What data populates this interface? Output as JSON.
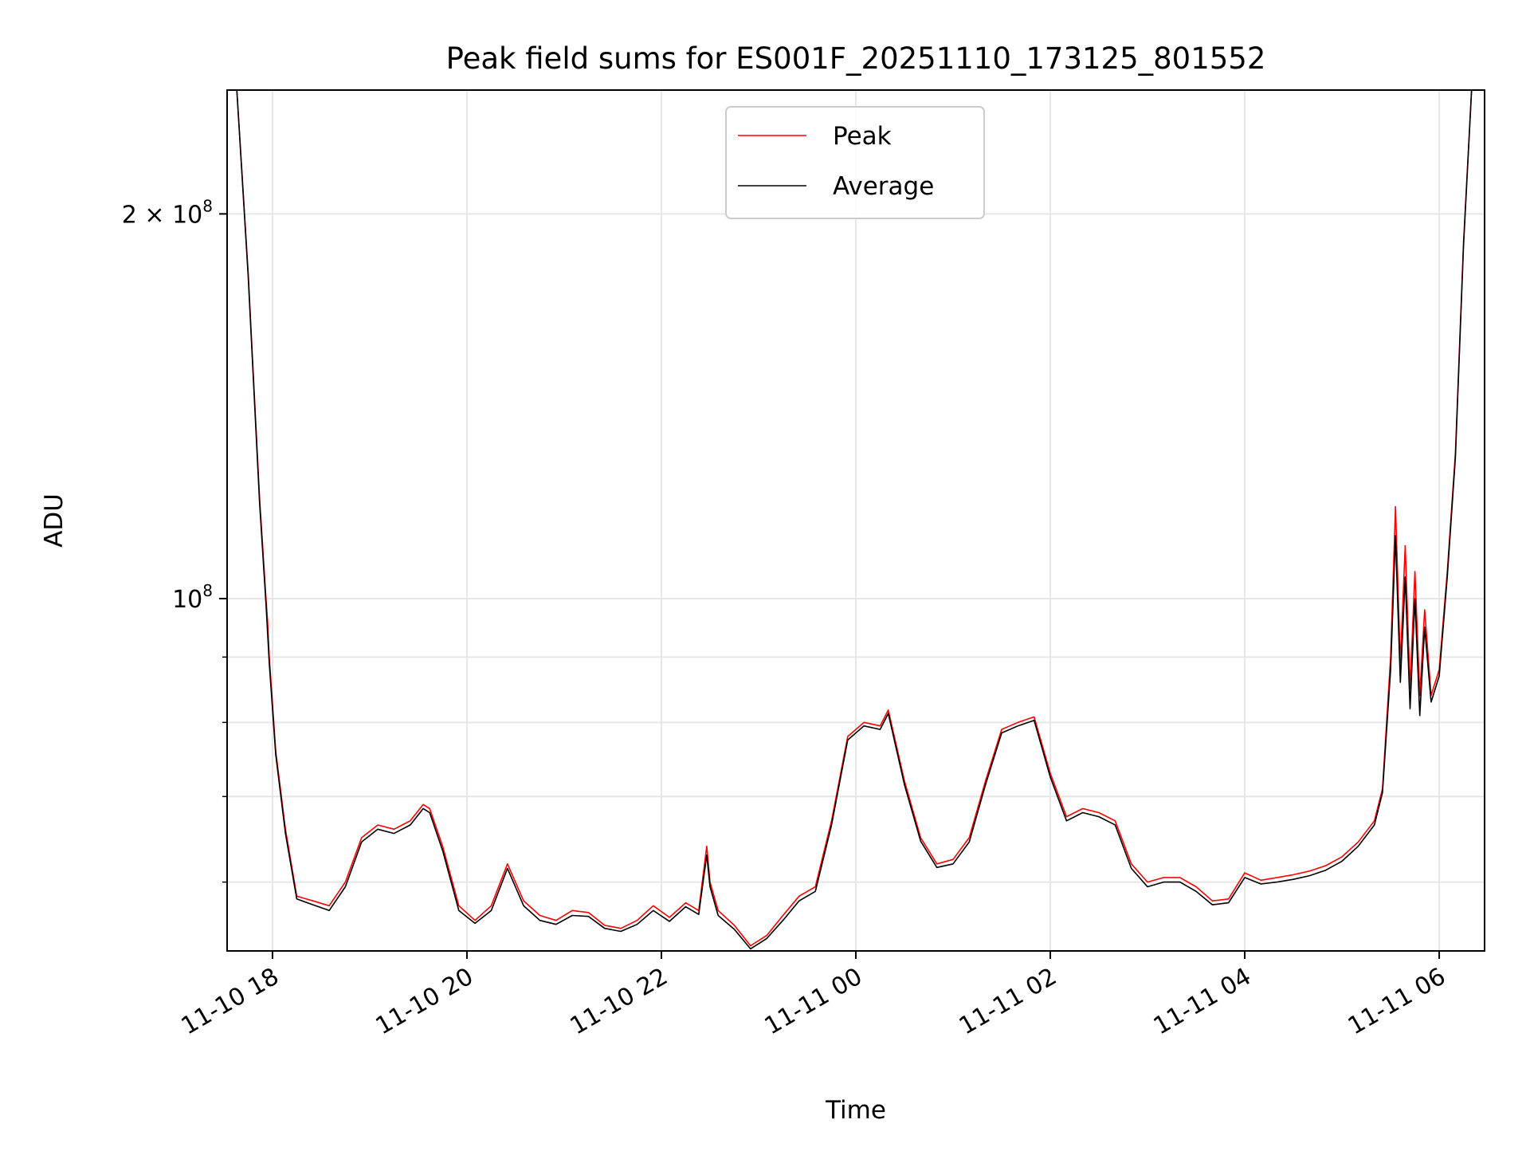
{
  "chart_data": {
    "type": "line",
    "title": "Peak field sums for ES001F_20251110_173125_801552",
    "xlabel": "Time",
    "ylabel": "ADU",
    "x_axis": {
      "type": "datetime",
      "range": [
        "2025-11-10 17:32",
        "2025-11-11 06:28"
      ],
      "ticks": [
        {
          "value": "2025-11-10 18:00",
          "label": "11-10 18"
        },
        {
          "value": "2025-11-10 20:00",
          "label": "11-10 20"
        },
        {
          "value": "2025-11-10 22:00",
          "label": "11-10 22"
        },
        {
          "value": "2025-11-11 00:00",
          "label": "11-11 00"
        },
        {
          "value": "2025-11-11 02:00",
          "label": "11-11 02"
        },
        {
          "value": "2025-11-11 04:00",
          "label": "11-11 04"
        },
        {
          "value": "2025-11-11 06:00",
          "label": "11-11 06"
        }
      ]
    },
    "y_axis": {
      "scale": "log",
      "range": [
        53000000,
        250000000
      ],
      "major_ticks": [
        {
          "value": 100000000,
          "label_base": "10",
          "label_exp": "8",
          "label_mult": ""
        },
        {
          "value": 200000000,
          "label_base": "10",
          "label_exp": "8",
          "label_mult": "2 × "
        }
      ],
      "minor_ticks": [
        60000000,
        70000000,
        80000000,
        90000000
      ]
    },
    "grid": true,
    "legend": {
      "position": "top-center"
    },
    "series": [
      {
        "name": "Peak",
        "color": "#ff0000",
        "x": [
          "2025-11-10 17:38",
          "2025-11-10 17:45",
          "2025-11-10 17:52",
          "2025-11-10 17:56",
          "2025-11-10 17:57",
          "2025-11-10 17:58",
          "2025-11-10 18:02",
          "2025-11-10 18:08",
          "2025-11-10 18:15",
          "2025-11-10 18:25",
          "2025-11-10 18:35",
          "2025-11-10 18:45",
          "2025-11-10 18:55",
          "2025-11-10 19:05",
          "2025-11-10 19:15",
          "2025-11-10 19:25",
          "2025-11-10 19:33",
          "2025-11-10 19:37",
          "2025-11-10 19:45",
          "2025-11-10 19:55",
          "2025-11-10 20:05",
          "2025-11-10 20:15",
          "2025-11-10 20:25",
          "2025-11-10 20:35",
          "2025-11-10 20:45",
          "2025-11-10 20:55",
          "2025-11-10 21:05",
          "2025-11-10 21:15",
          "2025-11-10 21:25",
          "2025-11-10 21:35",
          "2025-11-10 21:45",
          "2025-11-10 21:55",
          "2025-11-10 22:05",
          "2025-11-10 22:15",
          "2025-11-10 22:23",
          "2025-11-10 22:28",
          "2025-11-10 22:30",
          "2025-11-10 22:35",
          "2025-11-10 22:45",
          "2025-11-10 22:55",
          "2025-11-10 23:05",
          "2025-11-10 23:15",
          "2025-11-10 23:25",
          "2025-11-10 23:35",
          "2025-11-10 23:45",
          "2025-11-10 23:55",
          "2025-11-11 00:05",
          "2025-11-11 00:15",
          "2025-11-11 00:20",
          "2025-11-11 00:30",
          "2025-11-11 00:40",
          "2025-11-11 00:50",
          "2025-11-11 01:00",
          "2025-11-11 01:10",
          "2025-11-11 01:20",
          "2025-11-11 01:30",
          "2025-11-11 01:40",
          "2025-11-11 01:50",
          "2025-11-11 02:00",
          "2025-11-11 02:10",
          "2025-11-11 02:20",
          "2025-11-11 02:30",
          "2025-11-11 02:40",
          "2025-11-11 02:50",
          "2025-11-11 03:00",
          "2025-11-11 03:10",
          "2025-11-11 03:20",
          "2025-11-11 03:30",
          "2025-11-11 03:40",
          "2025-11-11 03:50",
          "2025-11-11 04:00",
          "2025-11-11 04:10",
          "2025-11-11 04:20",
          "2025-11-11 04:30",
          "2025-11-11 04:40",
          "2025-11-11 04:50",
          "2025-11-11 05:00",
          "2025-11-11 05:10",
          "2025-11-11 05:20",
          "2025-11-11 05:25",
          "2025-11-11 05:30",
          "2025-11-11 05:33",
          "2025-11-11 05:36",
          "2025-11-11 05:39",
          "2025-11-11 05:42",
          "2025-11-11 05:45",
          "2025-11-11 05:48",
          "2025-11-11 05:51",
          "2025-11-11 05:55",
          "2025-11-11 06:00",
          "2025-11-11 06:05",
          "2025-11-11 06:10",
          "2025-11-11 06:15",
          "2025-11-11 06:20"
        ],
        "y": [
          250000000,
          180000000,
          120000000,
          100000000,
          96000000,
          90000000,
          76000000,
          66000000,
          58500000,
          58000000,
          57500000,
          60000000,
          65000000,
          66500000,
          66000000,
          67000000,
          69000000,
          68500000,
          64000000,
          57500000,
          56000000,
          57500000,
          62000000,
          58000000,
          56500000,
          56000000,
          57000000,
          56800000,
          55500000,
          55200000,
          56000000,
          57500000,
          56300000,
          57800000,
          57000000,
          64000000,
          60000000,
          57000000,
          55500000,
          53500000,
          54500000,
          56500000,
          58500000,
          59500000,
          67000000,
          78000000,
          80000000,
          79500000,
          81800000,
          72000000,
          65000000,
          62000000,
          62500000,
          65000000,
          72000000,
          79000000,
          80000000,
          80800000,
          73000000,
          67500000,
          68500000,
          68000000,
          67000000,
          62000000,
          60000000,
          60500000,
          60500000,
          59500000,
          58000000,
          58200000,
          61000000,
          60200000,
          60500000,
          60800000,
          61200000,
          61800000,
          62800000,
          64500000,
          67000000,
          71000000,
          90000000,
          118000000,
          89000000,
          110000000,
          85000000,
          105000000,
          84000000,
          98000000,
          84000000,
          88000000,
          105000000,
          130000000,
          190000000,
          250000000
        ]
      },
      {
        "name": "Average",
        "color": "#000000",
        "x": [
          "2025-11-10 17:38",
          "2025-11-10 17:45",
          "2025-11-10 17:52",
          "2025-11-10 17:56",
          "2025-11-10 17:57",
          "2025-11-10 17:58",
          "2025-11-10 18:02",
          "2025-11-10 18:08",
          "2025-11-10 18:15",
          "2025-11-10 18:25",
          "2025-11-10 18:35",
          "2025-11-10 18:45",
          "2025-11-10 18:55",
          "2025-11-10 19:05",
          "2025-11-10 19:15",
          "2025-11-10 19:25",
          "2025-11-10 19:33",
          "2025-11-10 19:37",
          "2025-11-10 19:45",
          "2025-11-10 19:55",
          "2025-11-10 20:05",
          "2025-11-10 20:15",
          "2025-11-10 20:25",
          "2025-11-10 20:35",
          "2025-11-10 20:45",
          "2025-11-10 20:55",
          "2025-11-10 21:05",
          "2025-11-10 21:15",
          "2025-11-10 21:25",
          "2025-11-10 21:35",
          "2025-11-10 21:45",
          "2025-11-10 21:55",
          "2025-11-10 22:05",
          "2025-11-10 22:15",
          "2025-11-10 22:23",
          "2025-11-10 22:28",
          "2025-11-10 22:30",
          "2025-11-10 22:35",
          "2025-11-10 22:45",
          "2025-11-10 22:55",
          "2025-11-10 23:05",
          "2025-11-10 23:15",
          "2025-11-10 23:25",
          "2025-11-10 23:35",
          "2025-11-10 23:45",
          "2025-11-10 23:55",
          "2025-11-11 00:05",
          "2025-11-11 00:15",
          "2025-11-11 00:20",
          "2025-11-11 00:30",
          "2025-11-11 00:40",
          "2025-11-11 00:50",
          "2025-11-11 01:00",
          "2025-11-11 01:10",
          "2025-11-11 01:20",
          "2025-11-11 01:30",
          "2025-11-11 01:40",
          "2025-11-11 01:50",
          "2025-11-11 02:00",
          "2025-11-11 02:10",
          "2025-11-11 02:20",
          "2025-11-11 02:30",
          "2025-11-11 02:40",
          "2025-11-11 02:50",
          "2025-11-11 03:00",
          "2025-11-11 03:10",
          "2025-11-11 03:20",
          "2025-11-11 03:30",
          "2025-11-11 03:40",
          "2025-11-11 03:50",
          "2025-11-11 04:00",
          "2025-11-11 04:10",
          "2025-11-11 04:20",
          "2025-11-11 04:30",
          "2025-11-11 04:40",
          "2025-11-11 04:50",
          "2025-11-11 05:00",
          "2025-11-11 05:10",
          "2025-11-11 05:20",
          "2025-11-11 05:25",
          "2025-11-11 05:30",
          "2025-11-11 05:33",
          "2025-11-11 05:36",
          "2025-11-11 05:39",
          "2025-11-11 05:42",
          "2025-11-11 05:45",
          "2025-11-11 05:48",
          "2025-11-11 05:51",
          "2025-11-11 05:55",
          "2025-11-11 06:00",
          "2025-11-11 06:05",
          "2025-11-11 06:10",
          "2025-11-11 06:15",
          "2025-11-11 06:20"
        ],
        "y": [
          250000000,
          179000000,
          119000000,
          99000000,
          94000000,
          89000000,
          75500000,
          65500000,
          58200000,
          57600000,
          57000000,
          59500000,
          64500000,
          66000000,
          65500000,
          66500000,
          68500000,
          68000000,
          63500000,
          57000000,
          55700000,
          57000000,
          61500000,
          57500000,
          56000000,
          55600000,
          56500000,
          56400000,
          55200000,
          54900000,
          55600000,
          57000000,
          55900000,
          57400000,
          56600000,
          63000000,
          59500000,
          56500000,
          55100000,
          53200000,
          54200000,
          56000000,
          58000000,
          59000000,
          66500000,
          77500000,
          79500000,
          79000000,
          81300000,
          71500000,
          64600000,
          61600000,
          62000000,
          64500000,
          71500000,
          78500000,
          79500000,
          80300000,
          72500000,
          67000000,
          68000000,
          67500000,
          66500000,
          61500000,
          59500000,
          60000000,
          60000000,
          59000000,
          57600000,
          57800000,
          60500000,
          59800000,
          60000000,
          60300000,
          60700000,
          61300000,
          62300000,
          64000000,
          66500000,
          70500000,
          88000000,
          112000000,
          86000000,
          104000000,
          82000000,
          100000000,
          81000000,
          95000000,
          83000000,
          87000000,
          104000000,
          129000000,
          189000000,
          250000000
        ]
      }
    ]
  }
}
